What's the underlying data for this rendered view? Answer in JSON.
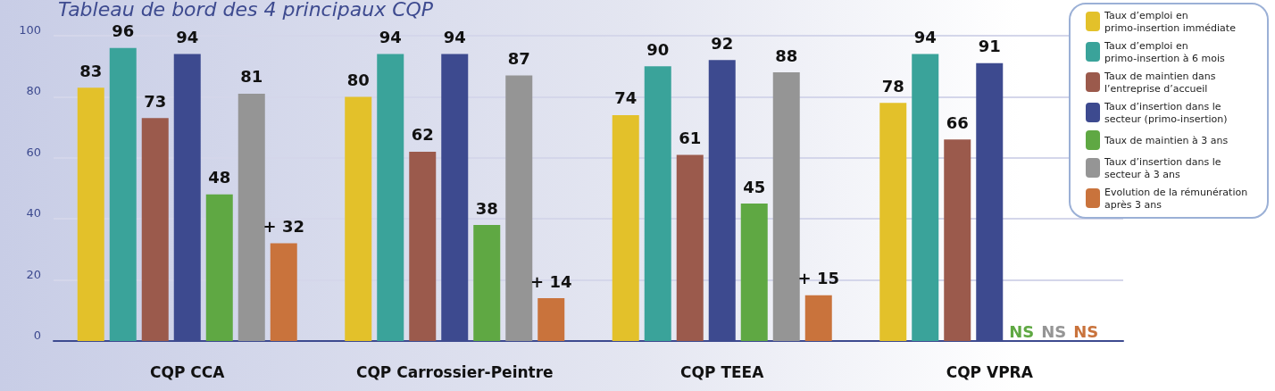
{
  "chart_data": {
    "type": "bar",
    "title": "Tableau de bord des 4 principaux CQP",
    "categories": [
      "CQP CCA",
      "CQP Carrossier-Peintre",
      "CQP TEEA",
      "CQP VPRA"
    ],
    "series": [
      {
        "name": "Taux d’emploi en primo-insertion immédiate",
        "color": "#e3c12a",
        "values": [
          83,
          80,
          74,
          78
        ],
        "value_labels": [
          "83",
          "80",
          "74",
          "78"
        ]
      },
      {
        "name": "Taux d’emploi en primo-insertion à 6 mois",
        "color": "#3aa39a",
        "values": [
          96,
          94,
          90,
          94
        ],
        "value_labels": [
          "96",
          "94",
          "90",
          "94"
        ]
      },
      {
        "name": "Taux de maintien dans l’entreprise d’accueil",
        "color": "#9b5a4c",
        "values": [
          73,
          62,
          61,
          66
        ],
        "value_labels": [
          "73",
          "62",
          "61",
          "66"
        ]
      },
      {
        "name": "Taux d’insertion dans le secteur (primo-insertion)",
        "color": "#3d4a8f",
        "values": [
          94,
          94,
          92,
          91
        ],
        "value_labels": [
          "94",
          "94",
          "92",
          "91"
        ]
      },
      {
        "name": "Taux de maintien à 3 ans",
        "color": "#5fa843",
        "values": [
          48,
          38,
          45,
          null
        ],
        "value_labels": [
          "48",
          "38",
          "45",
          "NS"
        ]
      },
      {
        "name": "Taux d’insertion dans le secteur à 3 ans",
        "color": "#959595",
        "values": [
          81,
          87,
          88,
          null
        ],
        "value_labels": [
          "81",
          "87",
          "88",
          "NS"
        ]
      },
      {
        "name": "Evolution de la rémunération après 3 ans",
        "color": "#c9733c",
        "values": [
          32,
          14,
          15,
          null
        ],
        "value_labels": [
          "+ 32",
          "+ 14",
          "+ 15",
          "NS"
        ]
      }
    ],
    "ylim": [
      0,
      100
    ],
    "yticks": [
      0,
      20,
      40,
      60,
      80,
      100
    ],
    "grid": "y",
    "legend": "top right"
  }
}
